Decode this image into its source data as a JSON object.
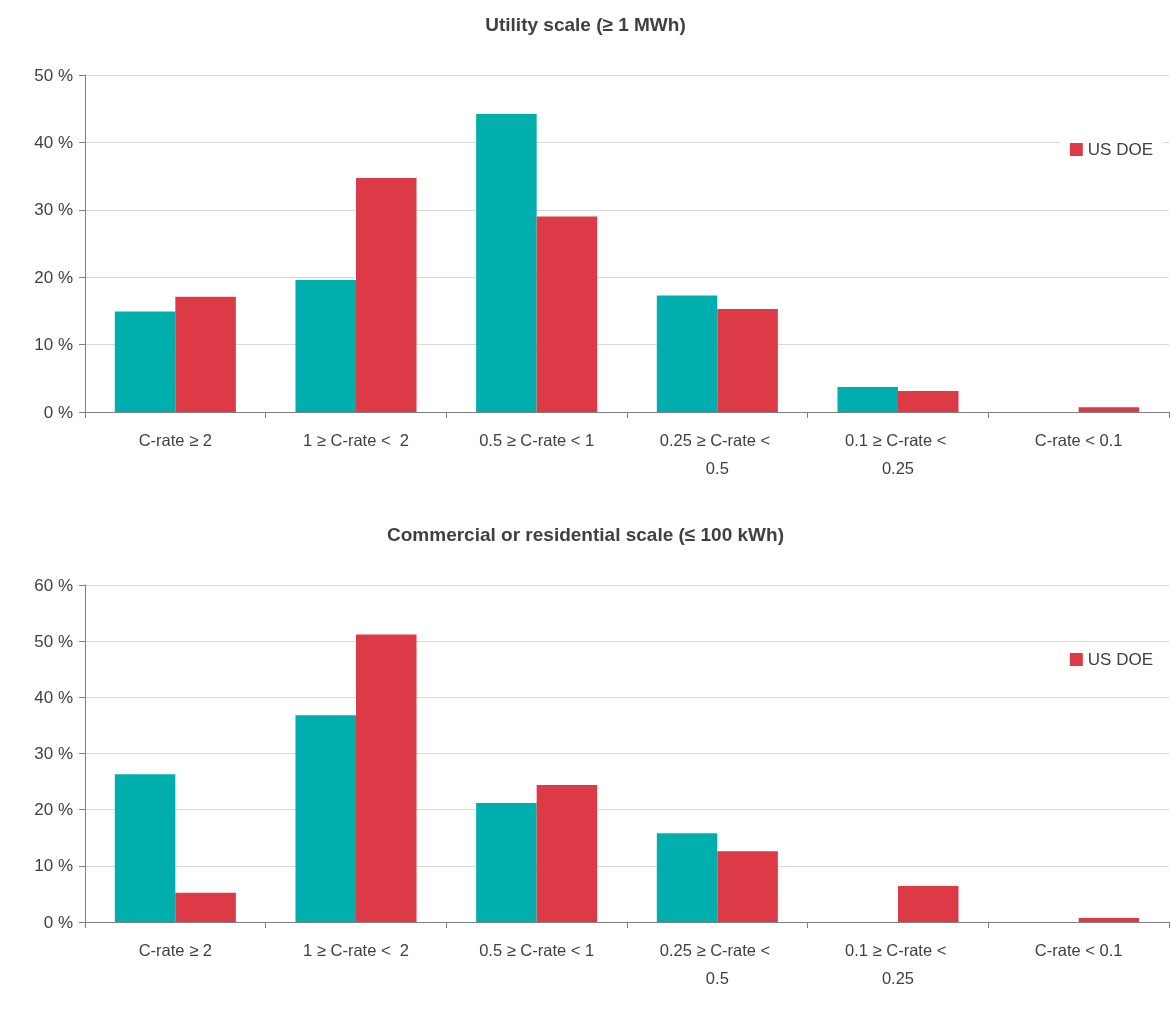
{
  "chart_data": [
    {
      "type": "bar",
      "title": "Utility scale (≥ 1 MWh)",
      "categories": [
        "C-rate ≥ 2",
        "1 ≥ C-rate <  2",
        "0.5 ≥ C-rate < 1",
        "0.25 ≥ C-rate < 0.5",
        "0.1 ≥ C-rate < 0.25",
        "C-rate < 0.1"
      ],
      "series": [
        {
          "color": "#00afad",
          "values": [
            14.9,
            19.6,
            44.2,
            17.3,
            3.7,
            0
          ]
        },
        {
          "name": "US DOE",
          "color": "#db3a46",
          "values": [
            17.1,
            34.7,
            29.0,
            15.3,
            3.1,
            0.7
          ]
        }
      ],
      "ylim": [
        0,
        50
      ],
      "yticks": [
        {
          "value": 0,
          "label": "0 %"
        },
        {
          "value": 10,
          "label": "10 %"
        },
        {
          "value": 20,
          "label": "20 %"
        },
        {
          "value": 30,
          "label": "30 %"
        },
        {
          "value": 40,
          "label": "40 %"
        },
        {
          "value": 50,
          "label": "50 %"
        }
      ],
      "grid": "y",
      "legend": "top right"
    },
    {
      "type": "bar",
      "title": "Commercial or residential scale (≤ 100 kWh)",
      "categories": [
        "C-rate ≥ 2",
        "1 ≥ C-rate <  2",
        "0.5 ≥ C-rate < 1",
        "0.25 ≥ C-rate < 0.5",
        "0.1 ≥ C-rate < 0.25",
        "C-rate < 0.1"
      ],
      "series": [
        {
          "color": "#00afad",
          "values": [
            26.3,
            36.8,
            21.2,
            15.8,
            0,
            0
          ]
        },
        {
          "name": "US DOE",
          "color": "#db3a46",
          "values": [
            5.2,
            51.2,
            24.4,
            12.6,
            6.4,
            0.7
          ]
        }
      ],
      "ylim": [
        0,
        60
      ],
      "yticks": [
        {
          "value": 0,
          "label": "0 %"
        },
        {
          "value": 10,
          "label": "10 %"
        },
        {
          "value": 20,
          "label": "20 %"
        },
        {
          "value": 30,
          "label": "30 %"
        },
        {
          "value": 40,
          "label": "40 %"
        },
        {
          "value": 50,
          "label": "50 %"
        },
        {
          "value": 60,
          "label": "60 %"
        }
      ],
      "grid": "y",
      "legend": "top right"
    }
  ]
}
